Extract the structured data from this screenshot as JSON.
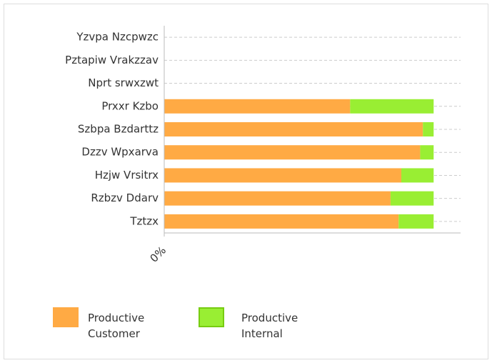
{
  "chart_data": {
    "type": "stacked_barh",
    "categories": [
      "Yzvpa Nzcpwzc",
      "Pztapiw Vrakzzav",
      "Nprt srwxzwt",
      "Prxxr Kzbo",
      "Szbpa Bzdarttz",
      "Dzzv Wpxarva",
      "Hzjw Vrsitrx",
      "Rzbzv Ddarv",
      "Tztzx"
    ],
    "series": [
      {
        "name": "Productive Customer",
        "color": "#ffaa44",
        "values": [
          null,
          null,
          null,
          69,
          96,
          95,
          88,
          84,
          87
        ]
      },
      {
        "name": "Productive Internal",
        "color": "#99ee33",
        "values": [
          null,
          null,
          null,
          31,
          4,
          5,
          12,
          16,
          13
        ]
      }
    ],
    "xlim": [
      0,
      110
    ],
    "xticks": [
      {
        "value": 0,
        "label": "0%"
      }
    ],
    "grid": true
  }
}
